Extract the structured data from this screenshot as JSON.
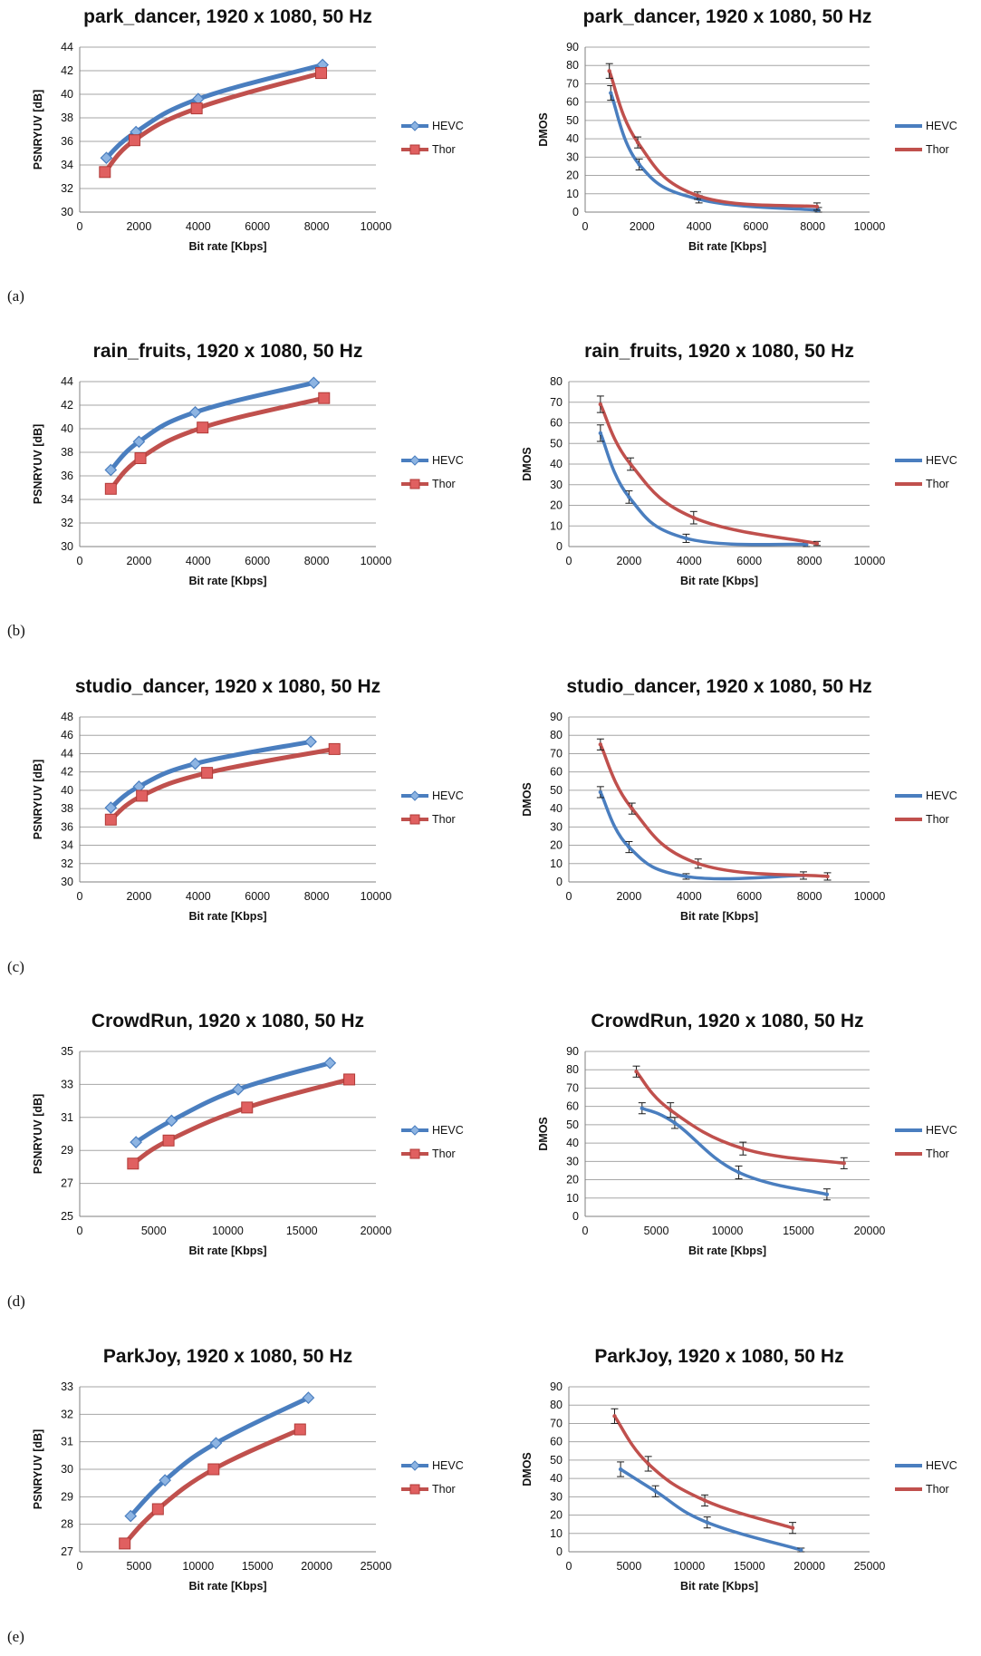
{
  "colors": {
    "HEVC": "#4a7ebf",
    "Thor": "#c0504d",
    "grid": "#a6a6a6",
    "axis": "#7f7f7f",
    "errorbar": "#1a1a1a"
  },
  "panel_labels": [
    "(a)",
    "(b)",
    "(c)",
    "(d)",
    "(e)"
  ],
  "chart_data": [
    {
      "type": "line",
      "title": "park_dancer, 1920 x 1080, 50 Hz",
      "xlabel": "Bit rate [Kbps]",
      "ylabel": "PSNRYUV [dB]",
      "xlim": [
        0,
        10000
      ],
      "xticks": [
        0,
        2000,
        4000,
        6000,
        8000,
        10000
      ],
      "ylim": [
        30,
        44
      ],
      "yticks": [
        30,
        32,
        34,
        36,
        38,
        40,
        42,
        44
      ],
      "grid": true,
      "legend": "right",
      "series": [
        {
          "name": "HEVC",
          "marker": "diamond",
          "x": [
            900,
            1900,
            4000,
            8200
          ],
          "y": [
            34.6,
            36.8,
            39.6,
            42.5
          ]
        },
        {
          "name": "Thor",
          "marker": "square",
          "x": [
            850,
            1850,
            3950,
            8150
          ],
          "y": [
            33.4,
            36.1,
            38.8,
            41.8
          ]
        }
      ]
    },
    {
      "type": "line",
      "title": "park_dancer, 1920 x 1080, 50 Hz",
      "xlabel": "Bit rate [Kbps]",
      "ylabel": "DMOS",
      "xlim": [
        0,
        10000
      ],
      "xticks": [
        0,
        2000,
        4000,
        6000,
        8000,
        10000
      ],
      "ylim": [
        0,
        90
      ],
      "yticks": [
        0,
        10,
        20,
        30,
        40,
        50,
        60,
        70,
        80,
        90
      ],
      "grid": true,
      "legend": "right",
      "series": [
        {
          "name": "HEVC",
          "x": [
            900,
            1900,
            4000,
            8200
          ],
          "y": [
            65,
            26,
            7,
            1
          ],
          "err": [
            4,
            3,
            2,
            1.5
          ]
        },
        {
          "name": "Thor",
          "x": [
            850,
            1850,
            3950,
            8150
          ],
          "y": [
            77,
            38,
            9,
            3
          ],
          "err": [
            4,
            3,
            2,
            2
          ]
        }
      ]
    },
    {
      "type": "line",
      "title": "rain_fruits, 1920 x 1080, 50 Hz",
      "xlabel": "Bit rate [Kbps]",
      "ylabel": "PSNRYUV [dB]",
      "xlim": [
        0,
        10000
      ],
      "xticks": [
        0,
        2000,
        4000,
        6000,
        8000,
        10000
      ],
      "ylim": [
        30,
        44
      ],
      "yticks": [
        30,
        32,
        34,
        36,
        38,
        40,
        42,
        44
      ],
      "grid": true,
      "legend": "right",
      "series": [
        {
          "name": "HEVC",
          "marker": "diamond",
          "x": [
            1050,
            2000,
            3900,
            7900
          ],
          "y": [
            36.5,
            38.9,
            41.4,
            43.9
          ]
        },
        {
          "name": "Thor",
          "marker": "square",
          "x": [
            1050,
            2050,
            4150,
            8250
          ],
          "y": [
            34.9,
            37.5,
            40.1,
            42.6
          ]
        }
      ]
    },
    {
      "type": "line",
      "title": "rain_fruits, 1920 x 1080, 50 Hz",
      "xlabel": "Bit rate [Kbps]",
      "ylabel": "DMOS",
      "xlim": [
        0,
        10000
      ],
      "xticks": [
        0,
        2000,
        4000,
        6000,
        8000,
        10000
      ],
      "ylim": [
        0,
        80
      ],
      "yticks": [
        0,
        10,
        20,
        30,
        40,
        50,
        60,
        70,
        80
      ],
      "grid": true,
      "legend": "right",
      "series": [
        {
          "name": "HEVC",
          "x": [
            1050,
            2000,
            3900,
            7900
          ],
          "y": [
            55,
            24,
            4,
            1
          ],
          "err": [
            4,
            3,
            2,
            1
          ]
        },
        {
          "name": "Thor",
          "x": [
            1050,
            2050,
            4150,
            8250
          ],
          "y": [
            69,
            40,
            14,
            1.5
          ],
          "err": [
            4,
            3,
            3,
            1
          ]
        }
      ]
    },
    {
      "type": "line",
      "title": "studio_dancer, 1920 x 1080, 50 Hz",
      "xlabel": "Bit rate [Kbps]",
      "ylabel": "PSNRYUV [dB]",
      "xlim": [
        0,
        10000
      ],
      "xticks": [
        0,
        2000,
        4000,
        6000,
        8000,
        10000
      ],
      "ylim": [
        30,
        48
      ],
      "yticks": [
        30,
        32,
        34,
        36,
        38,
        40,
        42,
        44,
        46,
        48
      ],
      "grid": true,
      "legend": "right",
      "series": [
        {
          "name": "HEVC",
          "marker": "diamond",
          "x": [
            1050,
            2000,
            3900,
            7800
          ],
          "y": [
            38.1,
            40.4,
            42.9,
            45.3
          ]
        },
        {
          "name": "Thor",
          "marker": "square",
          "x": [
            1050,
            2100,
            4300,
            8600
          ],
          "y": [
            36.8,
            39.4,
            41.9,
            44.5
          ]
        }
      ]
    },
    {
      "type": "line",
      "title": "studio_dancer, 1920 x 1080, 50 Hz",
      "xlabel": "Bit rate [Kbps]",
      "ylabel": "DMOS",
      "xlim": [
        0,
        10000
      ],
      "xticks": [
        0,
        2000,
        4000,
        6000,
        8000,
        10000
      ],
      "ylim": [
        0,
        90
      ],
      "yticks": [
        0,
        10,
        20,
        30,
        40,
        50,
        60,
        70,
        80,
        90
      ],
      "grid": true,
      "legend": "right",
      "series": [
        {
          "name": "HEVC",
          "x": [
            1050,
            2000,
            3900,
            7800
          ],
          "y": [
            49,
            19,
            3,
            3.5
          ],
          "err": [
            3,
            3,
            1.5,
            2
          ]
        },
        {
          "name": "Thor",
          "x": [
            1050,
            2100,
            4300,
            8600
          ],
          "y": [
            75,
            40,
            10,
            3
          ],
          "err": [
            3,
            3,
            2.5,
            2
          ]
        }
      ]
    },
    {
      "type": "line",
      "title": "CrowdRun, 1920 x 1080, 50 Hz",
      "xlabel": "Bit rate [Kbps]",
      "ylabel": "PSNRYUV [dB]",
      "xlim": [
        0,
        20000
      ],
      "xticks": [
        0,
        5000,
        10000,
        15000,
        20000
      ],
      "ylim": [
        25,
        35
      ],
      "yticks": [
        25,
        27,
        29,
        31,
        33,
        35
      ],
      "grid": true,
      "legend": "right",
      "series": [
        {
          "name": "HEVC",
          "marker": "diamond",
          "x": [
            3800,
            6200,
            10700,
            16900
          ],
          "y": [
            29.5,
            30.8,
            32.7,
            34.3
          ]
        },
        {
          "name": "Thor",
          "marker": "square",
          "x": [
            3600,
            6000,
            11300,
            18200
          ],
          "y": [
            28.2,
            29.6,
            31.6,
            33.3
          ]
        }
      ]
    },
    {
      "type": "line",
      "title": "CrowdRun, 1920 x 1080, 50 Hz",
      "xlabel": "Bit rate [Kbps]",
      "ylabel": "DMOS",
      "xlim": [
        0,
        20000
      ],
      "xticks": [
        0,
        5000,
        10000,
        15000,
        20000
      ],
      "ylim": [
        0,
        90
      ],
      "yticks": [
        0,
        10,
        20,
        30,
        40,
        50,
        60,
        70,
        80,
        90
      ],
      "grid": true,
      "legend": "right",
      "series": [
        {
          "name": "HEVC",
          "x": [
            4000,
            6300,
            10800,
            17000
          ],
          "y": [
            59,
            51,
            24,
            12
          ],
          "err": [
            3,
            3,
            3.5,
            3
          ]
        },
        {
          "name": "Thor",
          "x": [
            3600,
            6000,
            11100,
            18200
          ],
          "y": [
            79,
            58,
            37,
            29
          ],
          "err": [
            3,
            4,
            3.5,
            3
          ]
        }
      ]
    },
    {
      "type": "line",
      "title": "ParkJoy, 1920 x 1080, 50 Hz",
      "xlabel": "Bit rate [Kbps]",
      "ylabel": "PSNRYUV [dB]",
      "xlim": [
        0,
        25000
      ],
      "xticks": [
        0,
        5000,
        10000,
        15000,
        20000,
        25000
      ],
      "ylim": [
        27,
        33
      ],
      "yticks": [
        27,
        28,
        29,
        30,
        31,
        32,
        33
      ],
      "grid": true,
      "legend": "right",
      "series": [
        {
          "name": "HEVC",
          "marker": "diamond",
          "x": [
            4300,
            7200,
            11500,
            19300
          ],
          "y": [
            28.3,
            29.6,
            30.95,
            32.6
          ]
        },
        {
          "name": "Thor",
          "marker": "square",
          "x": [
            3800,
            6600,
            11300,
            18600
          ],
          "y": [
            27.3,
            28.55,
            30.0,
            31.45
          ]
        }
      ]
    },
    {
      "type": "line",
      "title": "ParkJoy, 1920 x 1080, 50 Hz",
      "xlabel": "Bit rate [Kbps]",
      "ylabel": "DMOS",
      "xlim": [
        0,
        25000
      ],
      "xticks": [
        0,
        5000,
        10000,
        15000,
        20000,
        25000
      ],
      "ylim": [
        0,
        90
      ],
      "yticks": [
        0,
        10,
        20,
        30,
        40,
        50,
        60,
        70,
        80,
        90
      ],
      "grid": true,
      "legend": "right",
      "series": [
        {
          "name": "HEVC",
          "x": [
            4300,
            7200,
            11500,
            19300
          ],
          "y": [
            45,
            33,
            16,
            1
          ],
          "err": [
            4,
            3,
            3,
            1
          ]
        },
        {
          "name": "Thor",
          "x": [
            3800,
            6600,
            11300,
            18600
          ],
          "y": [
            74,
            48,
            28,
            13
          ],
          "err": [
            4,
            4,
            3,
            3
          ]
        }
      ]
    }
  ]
}
